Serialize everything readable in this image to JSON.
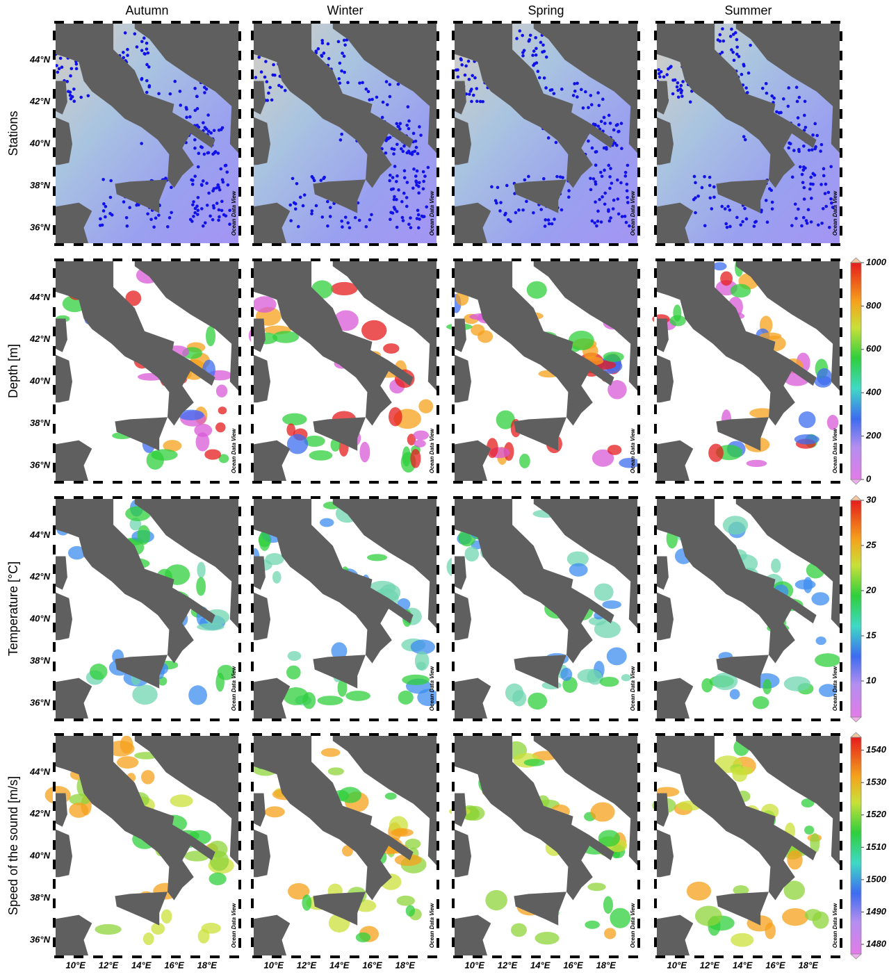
{
  "columns": [
    "Autumn",
    "Winter",
    "Spring",
    "Summer"
  ],
  "rows": [
    "Stations",
    "Depth [m]",
    "Temperature [°C]",
    "Speed of the sound [m/s]"
  ],
  "lat_labels": [
    "44°N",
    "42°N",
    "40°N",
    "38°N",
    "36°N"
  ],
  "lon_labels": [
    "10°E",
    "12°E",
    "14°E",
    "16°E",
    "18°E"
  ],
  "watermark": "Ocean Data View",
  "colorbars": [
    {
      "range": [
        0,
        1000
      ],
      "ticks": [
        0,
        200,
        400,
        600,
        800,
        1000
      ]
    },
    {
      "range": [
        6,
        30
      ],
      "ticks": [
        10,
        15,
        20,
        25,
        30
      ]
    },
    {
      "range": [
        1477,
        1544
      ],
      "ticks": [
        1480,
        1490,
        1500,
        1510,
        1520,
        1530,
        1540
      ]
    }
  ]
}
